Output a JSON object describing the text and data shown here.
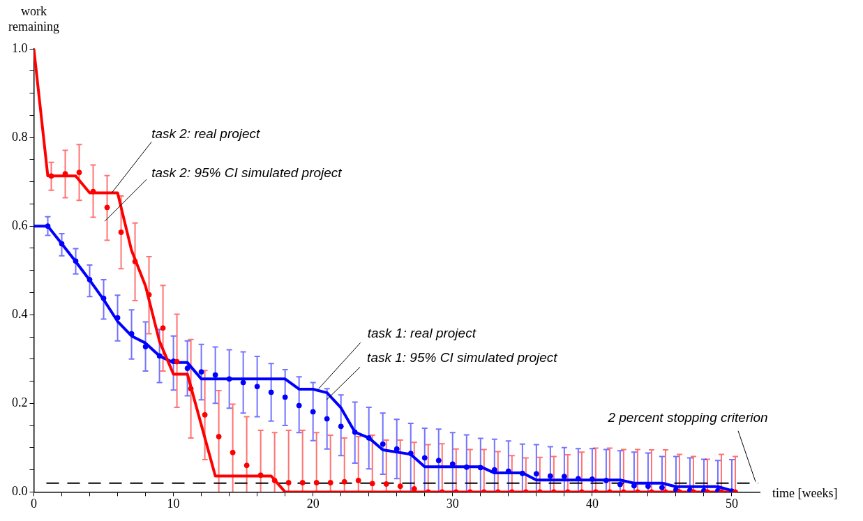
{
  "chart_data": {
    "type": "line",
    "xlabel": "time [weeks]",
    "ylabel": "work remaining",
    "xlim": [
      0,
      52
    ],
    "ylim": [
      0,
      1
    ],
    "xticks": [
      0,
      {
        "value": 2,
        "label": null
      },
      {
        "value": 4,
        "label": null
      },
      {
        "value": 6,
        "label": null
      },
      {
        "value": 8,
        "label": null
      },
      10,
      {
        "value": 12,
        "label": null
      },
      {
        "value": 14,
        "label": null
      },
      {
        "value": 16,
        "label": null
      },
      {
        "value": 18,
        "label": null
      },
      20,
      {
        "value": 22,
        "label": null
      },
      {
        "value": 24,
        "label": null
      },
      {
        "value": 26,
        "label": null
      },
      {
        "value": 28,
        "label": null
      },
      30,
      {
        "value": 32,
        "label": null
      },
      {
        "value": 34,
        "label": null
      },
      {
        "value": 36,
        "label": null
      },
      {
        "value": 38,
        "label": null
      },
      40,
      {
        "value": 42,
        "label": null
      },
      {
        "value": 44,
        "label": null
      },
      {
        "value": 46,
        "label": null
      },
      {
        "value": 48,
        "label": null
      },
      50
    ],
    "yticks": [
      {
        "value": 0,
        "label": "0.0"
      },
      {
        "value": 0.05,
        "label": null
      },
      {
        "value": 0.1,
        "label": null
      },
      {
        "value": 0.15,
        "label": null
      },
      {
        "value": 0.2,
        "label": "0.2"
      },
      {
        "value": 0.25,
        "label": null
      },
      {
        "value": 0.3,
        "label": null
      },
      {
        "value": 0.35,
        "label": null
      },
      {
        "value": 0.4,
        "label": "0.4"
      },
      {
        "value": 0.45,
        "label": null
      },
      {
        "value": 0.5,
        "label": null
      },
      {
        "value": 0.55,
        "label": null
      },
      {
        "value": 0.6,
        "label": "0.6"
      },
      {
        "value": 0.65,
        "label": null
      },
      {
        "value": 0.7,
        "label": null
      },
      {
        "value": 0.75,
        "label": null
      },
      {
        "value": 0.8,
        "label": "0.8"
      },
      {
        "value": 0.85,
        "label": null
      },
      {
        "value": 0.9,
        "label": null
      },
      {
        "value": 0.95,
        "label": null
      },
      {
        "value": 1,
        "label": "1.0"
      }
    ],
    "grid": false,
    "legend": false,
    "series": [
      {
        "type": "line",
        "marker": "none",
        "color": "#ff0000",
        "x": [
          0,
          1,
          3,
          4,
          6,
          7,
          8,
          9,
          10,
          11,
          13,
          17,
          18,
          50
        ],
        "values": [
          1,
          0.713,
          0.713,
          0.675,
          0.675,
          0.545,
          0.465,
          0.34,
          0.266,
          0.266,
          0.036,
          0.036,
          0,
          0
        ]
      },
      {
        "type": "line",
        "marker": "none",
        "color": "#0000ff",
        "x": [
          0,
          1,
          2,
          3,
          4,
          5,
          6,
          7,
          8,
          9,
          10,
          11,
          12,
          18,
          19,
          20,
          21,
          22,
          23,
          24,
          25,
          27,
          28,
          32,
          33,
          35,
          36,
          42,
          43,
          45,
          46,
          49,
          50
        ],
        "values": [
          0.6,
          0.6,
          0.56,
          0.52,
          0.478,
          0.434,
          0.385,
          0.352,
          0.336,
          0.307,
          0.292,
          0.292,
          0.255,
          0.255,
          0.232,
          0.232,
          0.224,
          0.19,
          0.135,
          0.122,
          0.095,
          0.085,
          0.057,
          0.057,
          0.043,
          0.043,
          0.027,
          0.027,
          0.02,
          0.02,
          0.012,
          0.012,
          0.003
        ]
      },
      {
        "type": "scatter",
        "marker": "circle",
        "color": "#ff0000",
        "x": [
          1.25,
          2.25,
          3.25,
          4.25,
          5.25,
          6.25,
          7.25,
          8.25,
          9.25,
          10.25,
          11.25,
          12.25,
          13.25,
          14.25,
          15.25,
          16.25,
          17.25,
          18.25,
          19.25,
          20.25,
          21.25,
          22.25,
          23.25,
          24.25,
          25.25,
          26.25,
          27.25,
          28.25,
          29.25,
          30.25,
          31.25,
          32.25,
          33.25,
          34.25,
          35.25,
          36.25,
          37.25,
          38.25,
          39.25,
          40.25,
          41.25,
          42.25,
          43.25,
          44.25,
          45.25,
          46.25,
          47.25,
          48.25,
          49.25,
          50.25
        ],
        "values": [
          0.713,
          0.718,
          0.721,
          0.678,
          0.642,
          0.586,
          0.52,
          0.445,
          0.37,
          0.294,
          0.233,
          0.174,
          0.125,
          0.089,
          0.06,
          0.038,
          0.026,
          0.021,
          0.021,
          0.021,
          0.021,
          0.023,
          0.026,
          0.019,
          0.018,
          0.013,
          0.007,
          0,
          0,
          0,
          0,
          0,
          0,
          0,
          0,
          0,
          0,
          0,
          0,
          0,
          0,
          0,
          0,
          0,
          0,
          0,
          0,
          0,
          0,
          0
        ],
        "errors": [
          [
            0.681,
            0.744
          ],
          [
            0.664,
            0.771
          ],
          [
            0.658,
            0.784
          ],
          [
            0.62,
            0.738
          ],
          [
            0.568,
            0.714
          ],
          [
            0.504,
            0.668
          ],
          [
            0.432,
            0.607
          ],
          [
            0.357,
            0.531
          ],
          [
            0.273,
            0.466
          ],
          [
            0.191,
            0.401
          ],
          [
            0.122,
            0.344
          ],
          [
            0.073,
            0.274
          ],
          [
            0,
            0.229
          ],
          [
            0,
            0.198
          ],
          [
            0,
            0.17
          ],
          [
            0,
            0.139
          ],
          [
            0,
            0.134
          ],
          [
            0,
            0.139
          ],
          [
            0,
            0.139
          ],
          [
            0,
            0.134
          ],
          [
            0,
            0.128
          ],
          [
            0,
            0.122
          ],
          [
            0,
            0.125
          ],
          [
            0,
            0.128
          ],
          [
            0,
            0.117
          ],
          [
            0,
            0.117
          ],
          [
            0,
            0.112
          ],
          [
            0,
            0.107
          ],
          [
            0,
            0.109
          ],
          [
            0,
            0.097
          ],
          [
            0,
            0.096
          ],
          [
            0,
            0.096
          ],
          [
            0,
            0.091
          ],
          [
            0,
            0.082
          ],
          [
            0,
            0.077
          ],
          [
            0,
            0.078
          ],
          [
            0,
            0.08
          ],
          [
            0,
            0.084
          ],
          [
            0,
            0.09
          ],
          [
            0,
            0.099
          ],
          [
            0,
            0.099
          ],
          [
            0,
            0.096
          ],
          [
            0,
            0.096
          ],
          [
            0,
            0.095
          ],
          [
            0,
            0.095
          ],
          [
            0,
            0.085
          ],
          [
            0,
            0.08
          ],
          [
            0,
            0.074
          ],
          [
            0,
            0.085
          ],
          [
            0,
            0.08
          ]
        ]
      },
      {
        "type": "scatter",
        "marker": "circle",
        "color": "#0000ff",
        "x": [
          1,
          2,
          3,
          4,
          5,
          6,
          7,
          8,
          9,
          10,
          11,
          12,
          13,
          14,
          15,
          16,
          17,
          18,
          19,
          20,
          21,
          22,
          23,
          24,
          25,
          26,
          27,
          28,
          29,
          30,
          31,
          32,
          33,
          34,
          35,
          36,
          37,
          38,
          39,
          40,
          41,
          42,
          43,
          44,
          45,
          46,
          47,
          48,
          49,
          50
        ],
        "values": [
          0.6,
          0.56,
          0.521,
          0.479,
          0.437,
          0.393,
          0.357,
          0.328,
          0.307,
          0.295,
          0.279,
          0.271,
          0.264,
          0.255,
          0.247,
          0.238,
          0.225,
          0.214,
          0.195,
          0.181,
          0.165,
          0.148,
          0.135,
          0.122,
          0.108,
          0.097,
          0.087,
          0.077,
          0.071,
          0.063,
          0.056,
          0.055,
          0.05,
          0.047,
          0.042,
          0.041,
          0.036,
          0.035,
          0.03,
          0.029,
          0.026,
          0.017,
          0.014,
          0.013,
          0.01,
          0.005,
          0.004,
          0.003,
          0.003,
          0.002
        ],
        "errors": [
          [
            0.579,
            0.621
          ],
          [
            0.533,
            0.583
          ],
          [
            0.492,
            0.549
          ],
          [
            0.441,
            0.512
          ],
          [
            0.39,
            0.479
          ],
          [
            0.341,
            0.444
          ],
          [
            0.3,
            0.411
          ],
          [
            0.273,
            0.384
          ],
          [
            0.247,
            0.367
          ],
          [
            0.23,
            0.352
          ],
          [
            0.217,
            0.341
          ],
          [
            0.208,
            0.333
          ],
          [
            0.2,
            0.327
          ],
          [
            0.189,
            0.321
          ],
          [
            0.178,
            0.316
          ],
          [
            0.17,
            0.306
          ],
          [
            0.16,
            0.29
          ],
          [
            0.15,
            0.276
          ],
          [
            0.134,
            0.26
          ],
          [
            0.116,
            0.247
          ],
          [
            0.097,
            0.233
          ],
          [
            0.082,
            0.219
          ],
          [
            0.065,
            0.203
          ],
          [
            0.052,
            0.191
          ],
          [
            0.04,
            0.178
          ],
          [
            0.03,
            0.164
          ],
          [
            0,
            0.155
          ],
          [
            0,
            0.144
          ],
          [
            0,
            0.142
          ],
          [
            0,
            0.134
          ],
          [
            0,
            0.129
          ],
          [
            0,
            0.121
          ],
          [
            0,
            0.119
          ],
          [
            0,
            0.115
          ],
          [
            0,
            0.108
          ],
          [
            0,
            0.107
          ],
          [
            0,
            0.102
          ],
          [
            0,
            0.1
          ],
          [
            0,
            0.098
          ],
          [
            0,
            0.098
          ],
          [
            0,
            0.096
          ],
          [
            0,
            0.093
          ],
          [
            0,
            0.09
          ],
          [
            0,
            0.088
          ],
          [
            0,
            0.08
          ],
          [
            0,
            0.08
          ],
          [
            0,
            0.077
          ],
          [
            0,
            0.074
          ],
          [
            0,
            0.071
          ],
          [
            0,
            0.073
          ]
        ]
      }
    ],
    "ref_lines": [
      {
        "axis": "y",
        "value": 0.02,
        "label": "2 percent stopping criterion",
        "color": "#000000",
        "line_style": "dashed"
      }
    ],
    "annotations": [
      {
        "text": "task 2: real project",
        "x": 5.58,
        "y": 0.675
      },
      {
        "text": "task 2: 95% CI simulated project",
        "x": 5.08,
        "y": 0.611
      },
      {
        "text": "task 1: real project",
        "x": 20.4,
        "y": 0.233
      },
      {
        "text": "task 1: 95% CI simulated project",
        "x": 20.97,
        "y": 0.208
      }
    ]
  }
}
